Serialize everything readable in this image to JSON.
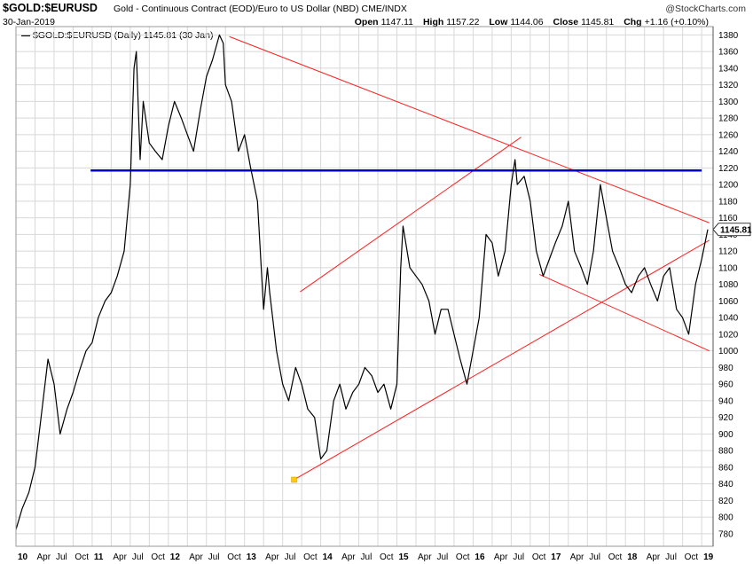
{
  "header": {
    "symbol": "$GOLD:$EURUSD",
    "description": "Gold - Continuous Contract (EOD)/Euro to US Dollar (NBD)  CME/INDX",
    "date": "30-Jan-2019",
    "brand": "@StockCharts.com",
    "open_label": "Open",
    "open": "1147.11",
    "high_label": "High",
    "high": "1157.22",
    "low_label": "Low",
    "low": "1144.06",
    "close_label": "Close",
    "close": "1145.81",
    "chg_label": "Chg",
    "chg": "+1.16 (+0.10%)"
  },
  "legend": "$GOLD:$EURUSD (Daily) 1145.81 (30 Jan)",
  "colors": {
    "price": "#000000",
    "trendline": "#ff2020",
    "horizontal": "#0000cc",
    "grid": "#d8d8d8",
    "anchor": "#ffcc00"
  },
  "chart_data": {
    "type": "line",
    "yscale": "linear",
    "ylim": [
      765,
      1390
    ],
    "y_ticks": [
      780,
      800,
      820,
      840,
      860,
      880,
      900,
      920,
      940,
      960,
      980,
      1000,
      1020,
      1040,
      1060,
      1080,
      1100,
      1120,
      1140,
      1160,
      1180,
      1200,
      1220,
      1240,
      1260,
      1280,
      1300,
      1320,
      1340,
      1360,
      1380
    ],
    "last_value_label": "1145.81",
    "x_ticks": [
      {
        "label": "10",
        "year": true
      },
      {
        "label": "Apr"
      },
      {
        "label": "Jul"
      },
      {
        "label": "Oct"
      },
      {
        "label": "11",
        "year": true
      },
      {
        "label": "Apr"
      },
      {
        "label": "Jul"
      },
      {
        "label": "Oct"
      },
      {
        "label": "12",
        "year": true
      },
      {
        "label": "Apr"
      },
      {
        "label": "Jul"
      },
      {
        "label": "Oct"
      },
      {
        "label": "13",
        "year": true
      },
      {
        "label": "Apr"
      },
      {
        "label": "Jul"
      },
      {
        "label": "Oct"
      },
      {
        "label": "14",
        "year": true
      },
      {
        "label": "Apr"
      },
      {
        "label": "Jul"
      },
      {
        "label": "Oct"
      },
      {
        "label": "15",
        "year": true
      },
      {
        "label": "Apr"
      },
      {
        "label": "Jul"
      },
      {
        "label": "Oct"
      },
      {
        "label": "16",
        "year": true
      },
      {
        "label": "Apr"
      },
      {
        "label": "Jul"
      },
      {
        "label": "Oct"
      },
      {
        "label": "17",
        "year": true
      },
      {
        "label": "Apr"
      },
      {
        "label": "Jul"
      },
      {
        "label": "Oct"
      },
      {
        "label": "18",
        "year": true
      },
      {
        "label": "Apr"
      },
      {
        "label": "Jul"
      },
      {
        "label": "Oct"
      },
      {
        "label": "19",
        "year": true
      }
    ],
    "series": [
      {
        "x": [
          2010.0,
          2010.08,
          2010.17,
          2010.25,
          2010.33,
          2010.42,
          2010.5,
          2010.58,
          2010.67,
          2010.75,
          2010.83,
          2010.92,
          2011.0,
          2011.08,
          2011.17,
          2011.25,
          2011.33,
          2011.42,
          2011.5,
          2011.55,
          2011.58,
          2011.63,
          2011.67,
          2011.75,
          2011.83,
          2011.92,
          2012.0,
          2012.08,
          2012.17,
          2012.25,
          2012.33,
          2012.42,
          2012.5,
          2012.58,
          2012.67,
          2012.72,
          2012.75,
          2012.83,
          2012.92,
          2013.0,
          2013.08,
          2013.17,
          2013.25,
          2013.3,
          2013.33,
          2013.42,
          2013.5,
          2013.58,
          2013.67,
          2013.75,
          2013.83,
          2013.92,
          2014.0,
          2014.08,
          2014.17,
          2014.25,
          2014.33,
          2014.42,
          2014.5,
          2014.58,
          2014.67,
          2014.75,
          2014.83,
          2014.92,
          2015.0,
          2015.05,
          2015.08,
          2015.17,
          2015.25,
          2015.33,
          2015.42,
          2015.5,
          2015.58,
          2015.67,
          2015.75,
          2015.83,
          2015.92,
          2016.0,
          2016.08,
          2016.17,
          2016.25,
          2016.33,
          2016.42,
          2016.5,
          2016.55,
          2016.58,
          2016.67,
          2016.75,
          2016.83,
          2016.92,
          2017.0,
          2017.08,
          2017.17,
          2017.25,
          2017.33,
          2017.42,
          2017.5,
          2017.58,
          2017.67,
          2017.75,
          2017.83,
          2017.92,
          2018.0,
          2018.08,
          2018.17,
          2018.25,
          2018.33,
          2018.42,
          2018.5,
          2018.58,
          2018.67,
          2018.75,
          2018.83,
          2018.92,
          2019.0,
          2019.08
        ],
        "y": [
          785,
          810,
          830,
          860,
          920,
          990,
          960,
          900,
          930,
          950,
          975,
          1000,
          1010,
          1040,
          1060,
          1070,
          1090,
          1120,
          1200,
          1340,
          1360,
          1230,
          1300,
          1250,
          1240,
          1230,
          1270,
          1300,
          1280,
          1260,
          1240,
          1290,
          1330,
          1350,
          1380,
          1370,
          1320,
          1300,
          1240,
          1260,
          1220,
          1180,
          1050,
          1100,
          1070,
          1000,
          960,
          940,
          980,
          960,
          930,
          920,
          870,
          880,
          940,
          960,
          930,
          950,
          960,
          980,
          970,
          950,
          960,
          930,
          960,
          1100,
          1150,
          1100,
          1090,
          1080,
          1060,
          1020,
          1050,
          1050,
          1020,
          990,
          960,
          1000,
          1040,
          1140,
          1130,
          1090,
          1120,
          1200,
          1230,
          1200,
          1210,
          1180,
          1120,
          1090,
          1110,
          1130,
          1150,
          1180,
          1120,
          1100,
          1080,
          1120,
          1200,
          1160,
          1120,
          1100,
          1080,
          1070,
          1090,
          1100,
          1080,
          1060,
          1090,
          1100,
          1050,
          1040,
          1020,
          1080,
          1110,
          1146
        ]
      }
    ],
    "trendlines": [
      {
        "from": [
          2012.8,
          1378
        ],
        "to": [
          2019.1,
          1154
        ],
        "style": "red"
      },
      {
        "from": [
          2013.65,
          845
        ],
        "to": [
          2019.1,
          1133
        ],
        "style": "red"
      },
      {
        "from": [
          2013.73,
          1071
        ],
        "to": [
          2016.63,
          1257
        ],
        "style": "red"
      },
      {
        "from": [
          2016.87,
          1092
        ],
        "to": [
          2019.1,
          1000
        ],
        "style": "red"
      },
      {
        "from": [
          2010.98,
          1217
        ],
        "to": [
          2019.0,
          1217
        ],
        "style": "blue"
      }
    ],
    "anchor_point": [
      2013.65,
      845
    ]
  }
}
